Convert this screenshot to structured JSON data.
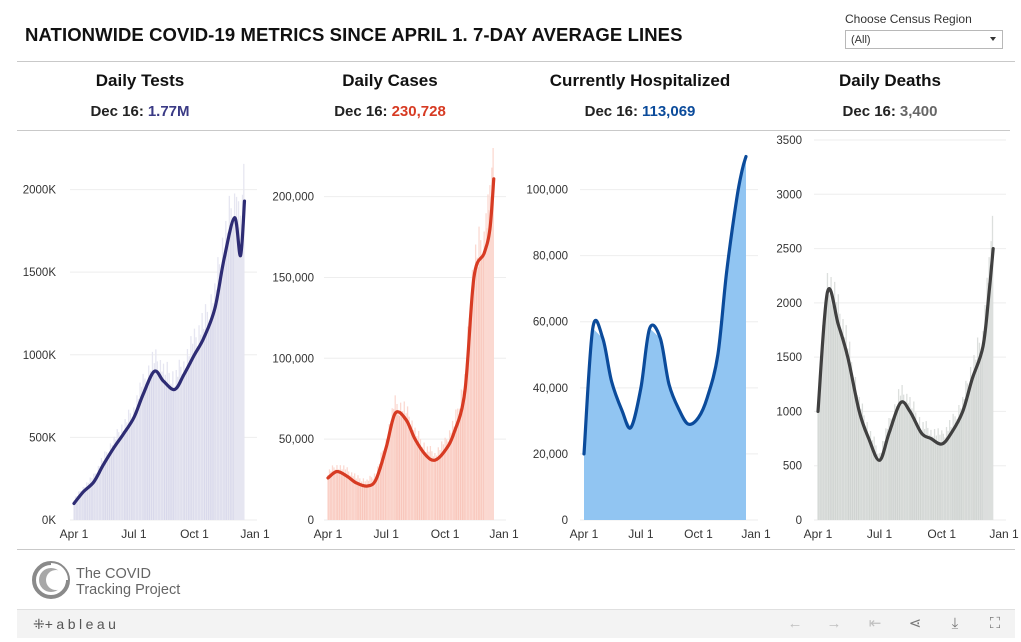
{
  "page": {
    "title": "NATIONWIDE COVID-19 METRICS SINCE APRIL 1. 7-DAY AVERAGE LINES"
  },
  "filter": {
    "label": "Choose Census Region",
    "value": "(All)"
  },
  "footer": {
    "logo_line1": "The COVID",
    "logo_line2": "Tracking Project",
    "tableau": "+ableau"
  },
  "toolbar": {
    "undo_icon": "←",
    "redo_icon": "→",
    "revert_icon": "⇤",
    "share_icon": "⋖",
    "download_icon": "⤓",
    "fullscreen_icon": "⛶"
  },
  "chart_data": [
    {
      "type": "bar",
      "title": "Daily Tests",
      "date_label": "Dec 16:",
      "latest_value": "1.77M",
      "colors": {
        "line": "#2e2c74",
        "bars": "#cfcfe6",
        "spikes": "#e6e6f1",
        "value": "#3a3a85"
      },
      "x_ticks": [
        "Apr 1",
        "Jul 1",
        "Oct 1",
        "Jan 1"
      ],
      "y_ticks": [
        0,
        500,
        1000,
        1500,
        2000
      ],
      "y_tick_labels": [
        "0K",
        "500K",
        "1000K",
        "1500K",
        "2000K"
      ],
      "ylim": [
        0,
        2300
      ],
      "x": [
        "Apr 1",
        "Apr 15",
        "May 1",
        "May 15",
        "Jun 1",
        "Jun 15",
        "Jul 1",
        "Jul 15",
        "Aug 1",
        "Aug 15",
        "Sep 1",
        "Sep 15",
        "Oct 1",
        "Oct 15",
        "Nov 1",
        "Nov 15",
        "Dec 1",
        "Dec 10",
        "Dec 16"
      ],
      "values": [
        100,
        170,
        230,
        330,
        440,
        520,
        620,
        760,
        900,
        840,
        790,
        880,
        1000,
        1100,
        1280,
        1580,
        1830,
        1600,
        1930
      ]
    },
    {
      "type": "bar",
      "title": "Daily Cases",
      "date_label": "Dec 16:",
      "latest_value": "230,728",
      "colors": {
        "line": "#d73b23",
        "bars": "#f6b6a8",
        "spikes": "#fbd9d1",
        "value": "#d73b23"
      },
      "x_ticks": [
        "Apr 1",
        "Jul 1",
        "Oct 1",
        "Jan 1"
      ],
      "y_ticks": [
        0,
        50000,
        100000,
        150000,
        200000
      ],
      "y_tick_labels": [
        "0",
        "50,000",
        "100,000",
        "150,000",
        "200,000"
      ],
      "ylim": [
        0,
        235000
      ],
      "x": [
        "Apr 1",
        "Apr 15",
        "May 1",
        "May 15",
        "Jun 1",
        "Jun 15",
        "Jul 1",
        "Jul 15",
        "Aug 1",
        "Aug 15",
        "Sep 1",
        "Sep 15",
        "Oct 1",
        "Oct 15",
        "Nov 1",
        "Nov 15",
        "Dec 1",
        "Dec 10",
        "Dec 16"
      ],
      "values": [
        26000,
        30000,
        27000,
        23000,
        21000,
        25000,
        45000,
        66000,
        62000,
        50000,
        40000,
        37000,
        43000,
        54000,
        80000,
        150000,
        165000,
        180000,
        211000
      ]
    },
    {
      "type": "area",
      "title": "Currently Hospitalized",
      "date_label": "Dec 16:",
      "latest_value": "113,069",
      "colors": {
        "line": "#0b4b9b",
        "bars": "#91c5f2",
        "spikes": "#b7d9f6",
        "value": "#0b4b9b"
      },
      "x_ticks": [
        "Apr 1",
        "Jul 1",
        "Oct 1",
        "Jan 1"
      ],
      "y_ticks": [
        0,
        20000,
        40000,
        60000,
        80000,
        100000
      ],
      "y_tick_labels": [
        "0",
        "20,000",
        "40,000",
        "60,000",
        "80,000",
        "100,000"
      ],
      "ylim": [
        0,
        115000
      ],
      "x": [
        "Apr 1",
        "Apr 15",
        "May 1",
        "May 15",
        "Jun 1",
        "Jun 15",
        "Jul 1",
        "Jul 15",
        "Aug 1",
        "Aug 15",
        "Sep 1",
        "Sep 15",
        "Oct 1",
        "Oct 15",
        "Nov 1",
        "Nov 15",
        "Dec 1",
        "Dec 10",
        "Dec 16"
      ],
      "values": [
        20000,
        58000,
        55000,
        42000,
        33000,
        28000,
        40000,
        58000,
        55000,
        41000,
        33000,
        29000,
        31000,
        37000,
        50000,
        75000,
        97000,
        106000,
        110000
      ]
    },
    {
      "type": "bar",
      "title": "Daily Deaths",
      "date_label": "Dec 16:",
      "latest_value": "3,400",
      "colors": {
        "line": "#404040",
        "bars": "#c8ccca",
        "spikes": "#dcdfdd",
        "value": "#666666"
      },
      "x_ticks": [
        "Apr 1",
        "Jul 1",
        "Oct 1",
        "Jan 1"
      ],
      "y_ticks": [
        0,
        500,
        1000,
        1500,
        2000,
        2500,
        3000,
        3500
      ],
      "y_tick_labels": [
        "0",
        "500",
        "1000",
        "1500",
        "2000",
        "2500",
        "3000",
        "3500"
      ],
      "ylim": [
        0,
        3500
      ],
      "x": [
        "Apr 1",
        "Apr 15",
        "May 1",
        "May 15",
        "Jun 1",
        "Jun 15",
        "Jul 1",
        "Jul 15",
        "Aug 1",
        "Aug 15",
        "Sep 1",
        "Sep 15",
        "Oct 1",
        "Oct 15",
        "Nov 1",
        "Nov 15",
        "Dec 1",
        "Dec 10",
        "Dec 16"
      ],
      "values": [
        1000,
        2100,
        1800,
        1500,
        1000,
        750,
        550,
        800,
        1080,
        1000,
        800,
        750,
        700,
        800,
        1000,
        1300,
        1600,
        2100,
        2500
      ]
    }
  ]
}
